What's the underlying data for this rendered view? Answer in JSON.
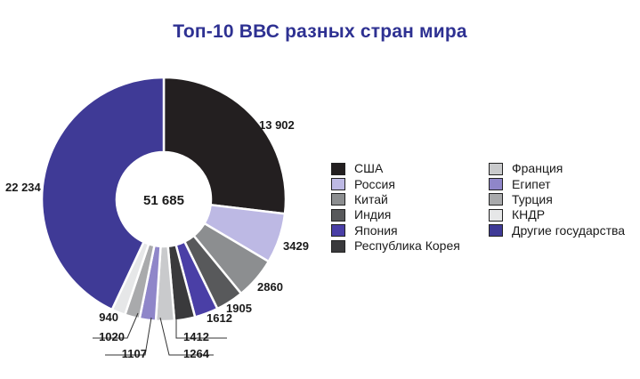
{
  "chart_data": {
    "type": "pie",
    "title": "Топ-10 ВВС разных стран мира",
    "total_label": "51 685",
    "slices": [
      {
        "name": "США",
        "value": 13902,
        "label": "13 902",
        "color": "#231f20"
      },
      {
        "name": "Россия",
        "value": 3429,
        "label": "3429",
        "color": "#bdb9e4"
      },
      {
        "name": "Китай",
        "value": 2860,
        "label": "2860",
        "color": "#8c8e90"
      },
      {
        "name": "Индия",
        "value": 1905,
        "label": "1905",
        "color": "#58595b"
      },
      {
        "name": "Япония",
        "value": 1612,
        "label": "1612",
        "color": "#4a3fa6"
      },
      {
        "name": "Республика Корея",
        "value": 1412,
        "label": "1412",
        "color": "#3a3a3c"
      },
      {
        "name": "Франция",
        "value": 1264,
        "label": "1264",
        "color": "#c9cacc"
      },
      {
        "name": "Египет",
        "value": 1107,
        "label": "1107",
        "color": "#8f86c9"
      },
      {
        "name": "Турция",
        "value": 1020,
        "label": "1020",
        "color": "#a9aaac"
      },
      {
        "name": "КНДР",
        "value": 940,
        "label": "940",
        "color": "#e6e7e8"
      },
      {
        "name": "Другие государства",
        "value": 22234,
        "label": "22 234",
        "color": "#3f3a96"
      }
    ],
    "legend_placement": "right"
  }
}
